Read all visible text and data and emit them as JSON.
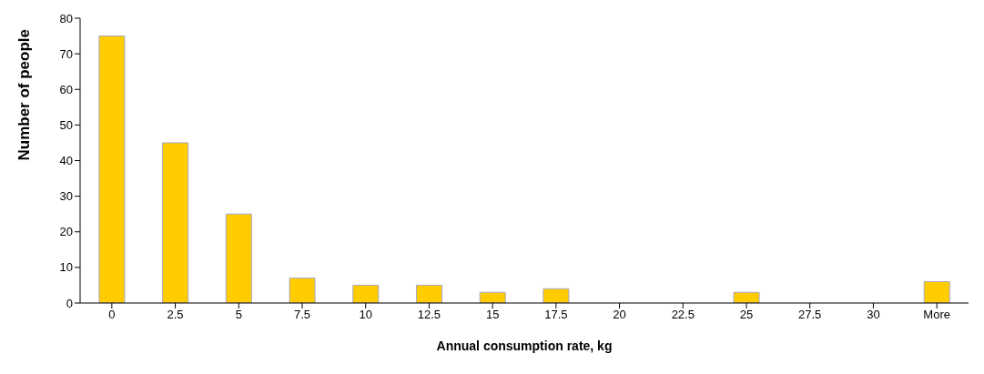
{
  "chart_data": {
    "type": "bar",
    "xlabel": "Annual consumption rate, kg",
    "ylabel": "Number of people",
    "categories": [
      "0",
      "2.5",
      "5",
      "7.5",
      "10",
      "12.5",
      "15",
      "17.5",
      "20",
      "22.5",
      "25",
      "27.5",
      "30",
      "More"
    ],
    "values": [
      75,
      45,
      25,
      7,
      5,
      5,
      3,
      4,
      0,
      0,
      3,
      0,
      0,
      6
    ],
    "color": "#ffcc00",
    "ylim": [
      0,
      80
    ],
    "yticks": [
      0,
      10,
      20,
      30,
      40,
      50,
      60,
      70,
      80
    ],
    "grid": false
  }
}
